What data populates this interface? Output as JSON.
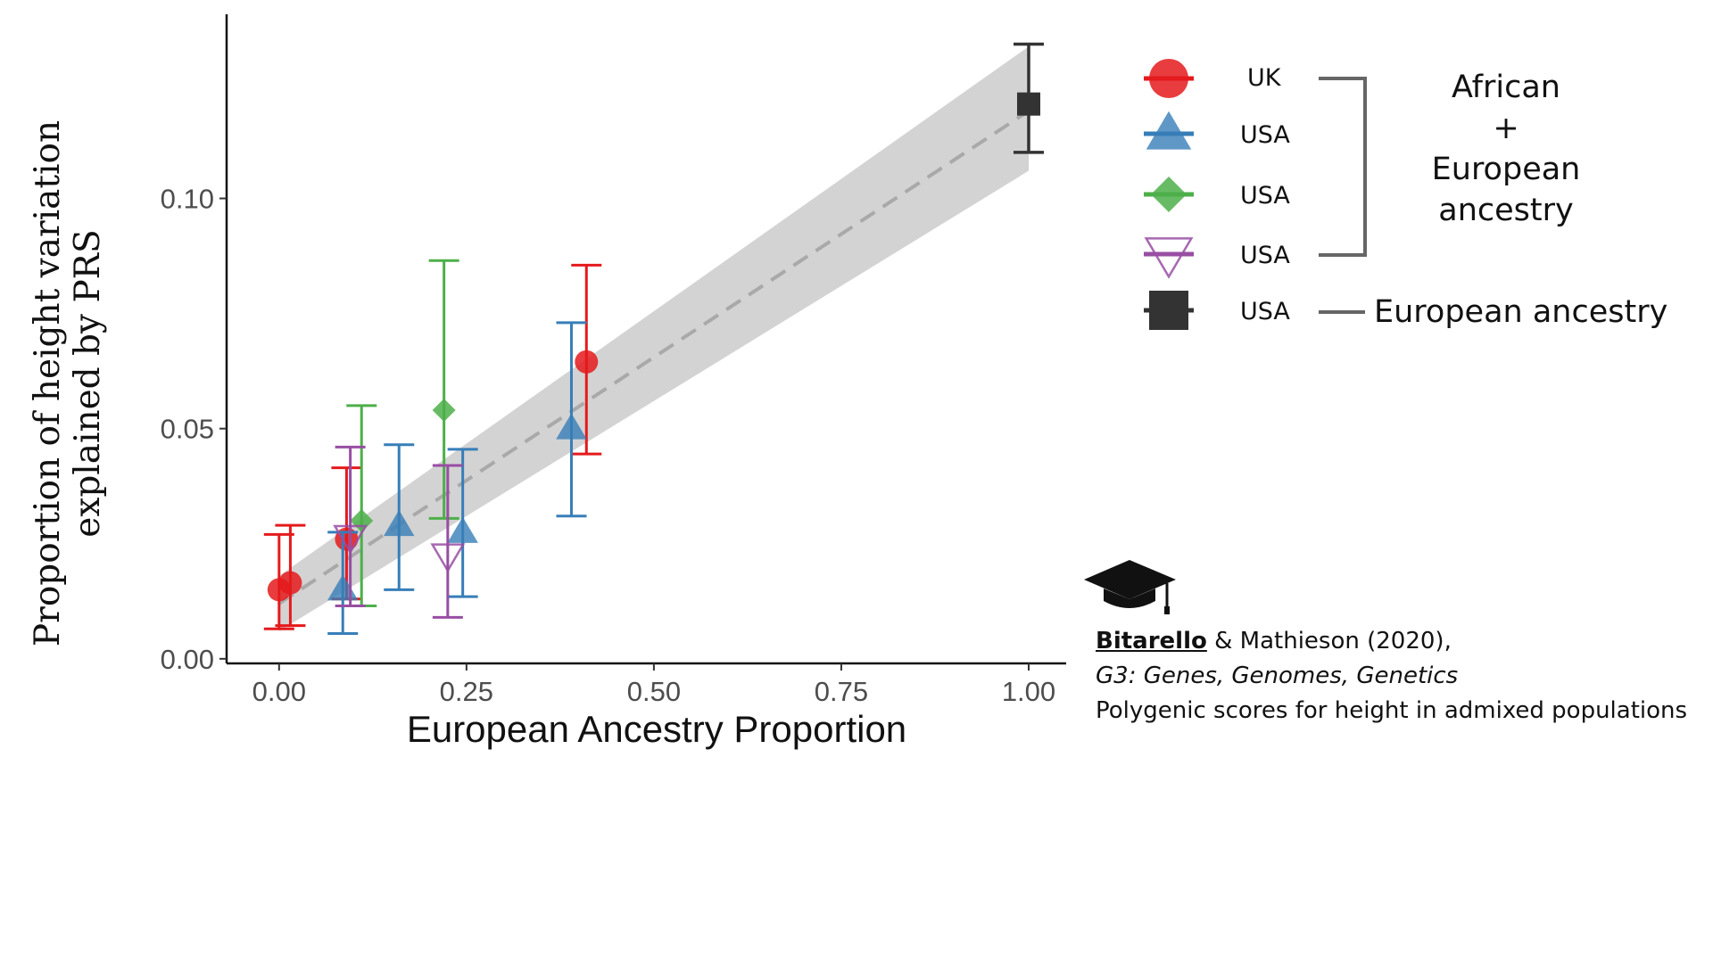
{
  "chart_data": {
    "type": "scatter",
    "xlabel": "European Ancestry Proportion",
    "ylabel": [
      "Proportion of height variation",
      "explained by PRS"
    ],
    "xlim": [
      -0.07,
      1.05
    ],
    "ylim": [
      -0.001,
      0.14
    ],
    "xticks": [
      0,
      0.25,
      0.5,
      0.75,
      1.0
    ],
    "xtick_labels": [
      "0.00",
      "0.25",
      "0.50",
      "0.75",
      "1.00"
    ],
    "yticks": [
      0,
      0.05,
      0.1
    ],
    "ytick_labels": [
      "0.00",
      "0.05",
      "0.10"
    ],
    "grid": false,
    "fit": {
      "type": "linear",
      "style": "dashed",
      "x": [
        0.0,
        1.0
      ],
      "y": [
        0.012,
        0.119
      ],
      "ci_lower": [
        0.006,
        0.106
      ],
      "ci_upper": [
        0.018,
        0.133
      ]
    },
    "series": [
      {
        "name": "UK",
        "shape": "circle",
        "color": "#e41a1c",
        "points": [
          {
            "x": 0.0,
            "y": 0.015,
            "ylo": 0.0065,
            "yhi": 0.027
          },
          {
            "x": 0.015,
            "y": 0.0165,
            "ylo": 0.0072,
            "yhi": 0.029
          },
          {
            "x": 0.09,
            "y": 0.026,
            "ylo": 0.013,
            "yhi": 0.0415
          },
          {
            "x": 0.41,
            "y": 0.0645,
            "ylo": 0.0445,
            "yhi": 0.0855
          }
        ]
      },
      {
        "name": "USA",
        "shape": "triangle",
        "color": "#377eb8",
        "points": [
          {
            "x": 0.085,
            "y": 0.015,
            "ylo": 0.0055,
            "yhi": 0.0275
          },
          {
            "x": 0.16,
            "y": 0.029,
            "ylo": 0.015,
            "yhi": 0.0465
          },
          {
            "x": 0.245,
            "y": 0.0275,
            "ylo": 0.0135,
            "yhi": 0.0455
          },
          {
            "x": 0.39,
            "y": 0.05,
            "ylo": 0.031,
            "yhi": 0.073
          }
        ]
      },
      {
        "name": "USA",
        "shape": "diamond",
        "color": "#4daf4a",
        "points": [
          {
            "x": 0.11,
            "y": 0.03,
            "ylo": 0.0115,
            "yhi": 0.055
          },
          {
            "x": 0.22,
            "y": 0.054,
            "ylo": 0.0305,
            "yhi": 0.0865
          }
        ]
      },
      {
        "name": "USA",
        "shape": "triangle-down-open",
        "color": "#984ea3",
        "points": [
          {
            "x": 0.095,
            "y": 0.0265,
            "ylo": 0.0115,
            "yhi": 0.046
          },
          {
            "x": 0.225,
            "y": 0.0225,
            "ylo": 0.009,
            "yhi": 0.042
          }
        ]
      },
      {
        "name": "USA",
        "shape": "square",
        "color": "#333333",
        "points": [
          {
            "x": 1.0,
            "y": 0.1205,
            "ylo": 0.11,
            "yhi": 0.1335
          }
        ]
      }
    ]
  },
  "legend": {
    "placement": "right",
    "items": [
      {
        "label": "UK",
        "shape": "circle",
        "color": "#e41a1c"
      },
      {
        "label": "USA",
        "shape": "triangle",
        "color": "#377eb8"
      },
      {
        "label": "USA",
        "shape": "diamond",
        "color": "#4daf4a"
      },
      {
        "label": "USA",
        "shape": "triangle-down-open",
        "color": "#984ea3"
      },
      {
        "label": "USA",
        "shape": "square",
        "color": "#333333"
      }
    ],
    "group_admixed": [
      "African",
      "+",
      "European",
      "ancestry"
    ],
    "group_european": "European ancestry"
  },
  "citation": {
    "icon": "graduation-cap-icon",
    "author": "Bitarello",
    "rest": " & Mathieson (2020),",
    "journal": "G3: Genes, Genomes, Genetics",
    "title": "Polygenic scores for height in admixed populations"
  }
}
